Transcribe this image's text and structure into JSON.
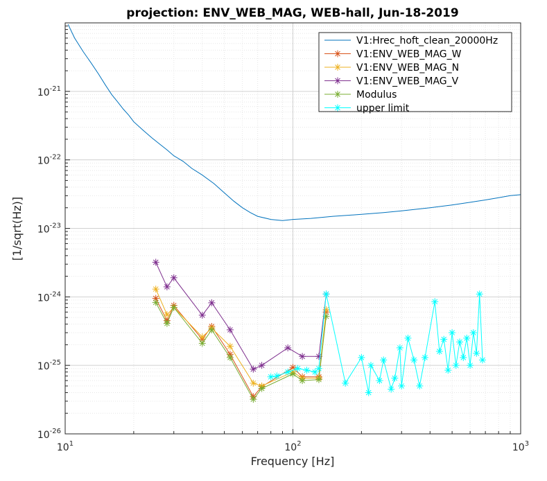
{
  "chart_data": {
    "type": "line",
    "title": "projection: ENV_WEB_MAG, WEB-hall, Jun-18-2019",
    "xlabel": "Frequency [Hz]",
    "ylabel": "[1/sqrt(Hz)]",
    "xscale": "log",
    "yscale": "log",
    "xlim": [
      10,
      1000
    ],
    "ylim": [
      1e-26,
      1e-20
    ],
    "grid": true,
    "legend_position": "top-right",
    "x_ticks": [
      {
        "base": "10",
        "exp": "1"
      },
      {
        "base": "10",
        "exp": "2"
      },
      {
        "base": "10",
        "exp": "3"
      }
    ],
    "y_ticks": [
      {
        "value": 1e-21,
        "base": "10",
        "exp": "-21"
      },
      {
        "value": 1e-22,
        "base": "10",
        "exp": "-22"
      },
      {
        "value": 1e-23,
        "base": "10",
        "exp": "-23"
      },
      {
        "value": 1e-24,
        "base": "10",
        "exp": "-24"
      },
      {
        "value": 1e-25,
        "base": "10",
        "exp": "-25"
      },
      {
        "value": 1e-26,
        "base": "10",
        "exp": "-26"
      }
    ],
    "series": [
      {
        "name": "V1:Hrec_hoft_clean_20000Hz",
        "color": "#0072BD",
        "marker": "none",
        "x": [
          10.3,
          11,
          12,
          13,
          14,
          15,
          16,
          17,
          18,
          19,
          20,
          22,
          24,
          26,
          28,
          30,
          33,
          36,
          40,
          45,
          50,
          55,
          60,
          65,
          70,
          80,
          90,
          100,
          120,
          150,
          200,
          250,
          300,
          400,
          500,
          600,
          700,
          800,
          900,
          1000
        ],
        "y": [
          9.5e-21,
          6e-21,
          3.8e-21,
          2.6e-21,
          1.8e-21,
          1.25e-21,
          9e-22,
          7e-22,
          5.5e-22,
          4.5e-22,
          3.6e-22,
          2.7e-22,
          2.1e-22,
          1.7e-22,
          1.4e-22,
          1.15e-22,
          9.5e-23,
          7.5e-23,
          6e-23,
          4.5e-23,
          3.3e-23,
          2.5e-23,
          2e-23,
          1.7e-23,
          1.5e-23,
          1.35e-23,
          1.3e-23,
          1.35e-23,
          1.4e-23,
          1.5e-23,
          1.6e-23,
          1.7e-23,
          1.8e-23,
          2e-23,
          2.2e-23,
          2.4e-23,
          2.6e-23,
          2.8e-23,
          3e-23,
          3.1e-23
        ]
      },
      {
        "name": "V1:ENV_WEB_MAG_W",
        "color": "#D95319",
        "marker": "star",
        "x": [
          25,
          28,
          30,
          40,
          44,
          53,
          67,
          73,
          100,
          110,
          130,
          140
        ],
        "y": [
          9.5e-25,
          4.5e-25,
          7.5e-25,
          2.4e-25,
          3.7e-25,
          1.45e-25,
          3.5e-26,
          4.9e-26,
          9.3e-26,
          6.8e-26,
          6.8e-26,
          6e-25
        ]
      },
      {
        "name": "V1:ENV_WEB_MAG_N",
        "color": "#EDB120",
        "marker": "star",
        "x": [
          25,
          28,
          30,
          40,
          44,
          53,
          67,
          73,
          100,
          110,
          130,
          140
        ],
        "y": [
          1.3e-24,
          5.5e-25,
          7e-25,
          2.6e-25,
          3.5e-25,
          1.9e-25,
          5.5e-26,
          5e-26,
          8e-26,
          6.5e-26,
          6.5e-26,
          6.5e-25
        ]
      },
      {
        "name": "V1:ENV_WEB_MAG_V",
        "color": "#7E2F8E",
        "marker": "star",
        "x": [
          25,
          28,
          30,
          40,
          44,
          53,
          67,
          73,
          95,
          110,
          130,
          140
        ],
        "y": [
          3.2e-24,
          1.4e-24,
          1.9e-24,
          5.4e-25,
          8.2e-25,
          3.3e-25,
          8.8e-26,
          1e-25,
          1.8e-25,
          1.35e-25,
          1.35e-25,
          1.1e-24
        ]
      },
      {
        "name": "Modulus",
        "color": "#77AC30",
        "marker": "star",
        "x": [
          25,
          28,
          30,
          40,
          44,
          53,
          67,
          73,
          100,
          110,
          130,
          140
        ],
        "y": [
          8.3e-25,
          4.1e-25,
          7e-25,
          2.1e-25,
          3.3e-25,
          1.3e-25,
          3.2e-26,
          4.6e-26,
          7.5e-26,
          6e-26,
          6.2e-26,
          5.2e-25
        ]
      },
      {
        "name": "upper limit",
        "color": "#00FFFF",
        "marker": "star",
        "x": [
          80,
          85,
          95,
          105,
          115,
          125,
          130,
          140,
          170,
          200,
          215,
          220,
          240,
          250,
          270,
          280,
          295,
          300,
          320,
          340,
          360,
          380,
          420,
          440,
          460,
          480,
          500,
          520,
          540,
          560,
          580,
          600,
          620,
          640,
          660,
          680
        ],
        "y": [
          6.8e-26,
          7e-26,
          8e-26,
          9e-26,
          8.5e-26,
          8e-26,
          9e-26,
          1.1e-24,
          5.5e-26,
          1.3e-25,
          4e-26,
          1e-25,
          6e-26,
          1.2e-25,
          4.5e-26,
          6.5e-26,
          1.8e-25,
          5e-26,
          2.5e-25,
          1.2e-25,
          5e-26,
          1.3e-25,
          8.5e-25,
          1.6e-25,
          2.4e-25,
          8.5e-26,
          3e-25,
          1e-25,
          2.2e-25,
          1.3e-25,
          2.5e-25,
          1e-25,
          3e-25,
          1.5e-25,
          1.1e-24,
          1.2e-25
        ]
      }
    ]
  }
}
